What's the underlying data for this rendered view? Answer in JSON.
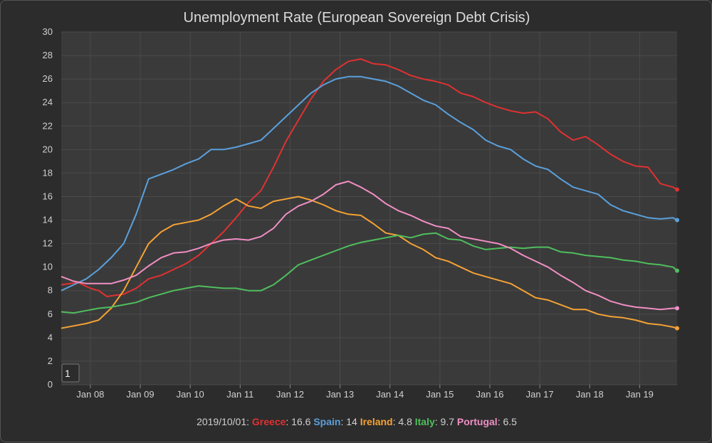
{
  "chart_data": {
    "type": "line",
    "title": "Unemployment Rate (European Sovereign Debt Crisis)",
    "x_tick_labels": [
      "Jan 08",
      "Jan 09",
      "Jan 10",
      "Jan 11",
      "Jan 12",
      "Jan 13",
      "Jan 14",
      "Jan 15",
      "Jan 16",
      "Jan 17",
      "Jan 18",
      "Jan 19"
    ],
    "y_ticks": [
      0,
      2,
      4,
      6,
      8,
      10,
      12,
      14,
      16,
      18,
      20,
      22,
      24,
      26,
      28,
      30
    ],
    "ylim": [
      0,
      30
    ],
    "xlim": [
      "2007-06",
      "2019-10"
    ],
    "grid": true,
    "roller_value": "1",
    "series": [
      {
        "name": "Greece",
        "color": "#e03131",
        "x": [
          "2007-06",
          "2007-10",
          "2008-01",
          "2008-03",
          "2008-05",
          "2008-07",
          "2008-09",
          "2008-12",
          "2009-03",
          "2009-06",
          "2009-09",
          "2009-12",
          "2010-03",
          "2010-06",
          "2010-09",
          "2010-12",
          "2011-03",
          "2011-06",
          "2011-09",
          "2011-12",
          "2012-03",
          "2012-06",
          "2012-09",
          "2012-12",
          "2013-03",
          "2013-06",
          "2013-09",
          "2013-12",
          "2014-03",
          "2014-06",
          "2014-09",
          "2014-12",
          "2015-03",
          "2015-06",
          "2015-09",
          "2015-12",
          "2016-03",
          "2016-06",
          "2016-09",
          "2016-12",
          "2017-03",
          "2017-06",
          "2017-09",
          "2017-12",
          "2018-03",
          "2018-06",
          "2018-09",
          "2018-12",
          "2019-03",
          "2019-06",
          "2019-09",
          "2019-10"
        ],
        "y": [
          8.5,
          8.7,
          8.2,
          8.0,
          7.5,
          7.6,
          7.7,
          8.2,
          9.0,
          9.3,
          9.8,
          10.3,
          11.0,
          12.0,
          13.0,
          14.2,
          15.5,
          16.5,
          18.5,
          20.7,
          22.5,
          24.3,
          25.8,
          26.8,
          27.5,
          27.7,
          27.3,
          27.2,
          26.8,
          26.3,
          26.0,
          25.8,
          25.5,
          24.8,
          24.5,
          24.0,
          23.6,
          23.3,
          23.1,
          23.2,
          22.6,
          21.5,
          20.8,
          21.1,
          20.4,
          19.6,
          19.0,
          18.6,
          18.5,
          17.1,
          16.8,
          16.6
        ]
      },
      {
        "name": "Spain",
        "color": "#5aa0dc",
        "x": [
          "2007-06",
          "2007-09",
          "2007-12",
          "2008-03",
          "2008-06",
          "2008-09",
          "2008-12",
          "2009-03",
          "2009-06",
          "2009-09",
          "2009-12",
          "2010-03",
          "2010-06",
          "2010-09",
          "2010-12",
          "2011-03",
          "2011-06",
          "2011-09",
          "2011-12",
          "2012-03",
          "2012-06",
          "2012-09",
          "2012-12",
          "2013-03",
          "2013-06",
          "2013-09",
          "2013-12",
          "2014-03",
          "2014-06",
          "2014-09",
          "2014-12",
          "2015-03",
          "2015-06",
          "2015-09",
          "2015-12",
          "2016-03",
          "2016-06",
          "2016-09",
          "2016-12",
          "2017-03",
          "2017-06",
          "2017-09",
          "2017-12",
          "2018-03",
          "2018-06",
          "2018-09",
          "2018-12",
          "2019-03",
          "2019-06",
          "2019-09",
          "2019-10"
        ],
        "y": [
          8.0,
          8.5,
          9.0,
          9.8,
          10.8,
          12.0,
          14.5,
          17.5,
          17.9,
          18.3,
          18.8,
          19.2,
          20.0,
          20.0,
          20.2,
          20.5,
          20.8,
          21.8,
          22.8,
          23.8,
          24.8,
          25.5,
          26.0,
          26.2,
          26.2,
          26.0,
          25.8,
          25.4,
          24.8,
          24.2,
          23.8,
          23.0,
          22.3,
          21.7,
          20.8,
          20.3,
          20.0,
          19.2,
          18.6,
          18.3,
          17.5,
          16.8,
          16.5,
          16.2,
          15.3,
          14.8,
          14.5,
          14.2,
          14.1,
          14.2,
          14.0
        ]
      },
      {
        "name": "Ireland",
        "color": "#f5a234",
        "x": [
          "2007-06",
          "2007-09",
          "2007-12",
          "2008-03",
          "2008-06",
          "2008-09",
          "2008-12",
          "2009-03",
          "2009-06",
          "2009-09",
          "2009-12",
          "2010-03",
          "2010-06",
          "2010-09",
          "2010-12",
          "2011-03",
          "2011-06",
          "2011-09",
          "2011-12",
          "2012-03",
          "2012-06",
          "2012-09",
          "2012-12",
          "2013-03",
          "2013-06",
          "2013-09",
          "2013-12",
          "2014-03",
          "2014-06",
          "2014-09",
          "2014-12",
          "2015-03",
          "2015-06",
          "2015-09",
          "2015-12",
          "2016-03",
          "2016-06",
          "2016-09",
          "2016-12",
          "2017-03",
          "2017-06",
          "2017-09",
          "2017-12",
          "2018-03",
          "2018-06",
          "2018-09",
          "2018-12",
          "2019-03",
          "2019-06",
          "2019-09",
          "2019-10"
        ],
        "y": [
          4.8,
          5.0,
          5.2,
          5.5,
          6.5,
          8.0,
          10.0,
          12.0,
          13.0,
          13.6,
          13.8,
          14.0,
          14.5,
          15.2,
          15.8,
          15.2,
          15.0,
          15.6,
          15.8,
          16.0,
          15.7,
          15.3,
          14.8,
          14.5,
          14.4,
          13.7,
          12.9,
          12.7,
          12.0,
          11.5,
          10.8,
          10.5,
          10.0,
          9.5,
          9.2,
          8.9,
          8.6,
          8.0,
          7.4,
          7.2,
          6.8,
          6.4,
          6.4,
          6.0,
          5.8,
          5.7,
          5.5,
          5.2,
          5.1,
          4.9,
          4.8
        ]
      },
      {
        "name": "Italy",
        "color": "#4fbf5e",
        "x": [
          "2007-06",
          "2007-09",
          "2007-12",
          "2008-03",
          "2008-06",
          "2008-09",
          "2008-12",
          "2009-03",
          "2009-06",
          "2009-09",
          "2009-12",
          "2010-03",
          "2010-06",
          "2010-09",
          "2010-12",
          "2011-03",
          "2011-06",
          "2011-09",
          "2011-12",
          "2012-03",
          "2012-06",
          "2012-09",
          "2012-12",
          "2013-03",
          "2013-06",
          "2013-09",
          "2013-12",
          "2014-03",
          "2014-06",
          "2014-09",
          "2014-12",
          "2015-03",
          "2015-06",
          "2015-09",
          "2015-12",
          "2016-03",
          "2016-06",
          "2016-09",
          "2016-12",
          "2017-03",
          "2017-06",
          "2017-09",
          "2017-12",
          "2018-03",
          "2018-06",
          "2018-09",
          "2018-12",
          "2019-03",
          "2019-06",
          "2019-09",
          "2019-10"
        ],
        "y": [
          6.2,
          6.1,
          6.3,
          6.5,
          6.6,
          6.8,
          7.0,
          7.4,
          7.7,
          8.0,
          8.2,
          8.4,
          8.3,
          8.2,
          8.2,
          8.0,
          8.0,
          8.5,
          9.3,
          10.2,
          10.6,
          11.0,
          11.4,
          11.8,
          12.1,
          12.3,
          12.5,
          12.7,
          12.5,
          12.8,
          12.9,
          12.4,
          12.3,
          11.8,
          11.5,
          11.6,
          11.7,
          11.6,
          11.7,
          11.7,
          11.3,
          11.2,
          11.0,
          10.9,
          10.8,
          10.6,
          10.5,
          10.3,
          10.2,
          10.0,
          9.7
        ]
      },
      {
        "name": "Portugal",
        "color": "#f08fc4",
        "x": [
          "2007-06",
          "2007-09",
          "2007-12",
          "2008-03",
          "2008-06",
          "2008-09",
          "2008-12",
          "2009-03",
          "2009-06",
          "2009-09",
          "2009-12",
          "2010-03",
          "2010-06",
          "2010-09",
          "2010-12",
          "2011-03",
          "2011-06",
          "2011-09",
          "2011-12",
          "2012-03",
          "2012-06",
          "2012-09",
          "2012-12",
          "2013-03",
          "2013-06",
          "2013-09",
          "2013-12",
          "2014-03",
          "2014-06",
          "2014-09",
          "2014-12",
          "2015-03",
          "2015-06",
          "2015-09",
          "2015-12",
          "2016-03",
          "2016-06",
          "2016-09",
          "2016-12",
          "2017-03",
          "2017-06",
          "2017-09",
          "2017-12",
          "2018-03",
          "2018-06",
          "2018-09",
          "2018-12",
          "2019-03",
          "2019-06",
          "2019-09",
          "2019-10"
        ],
        "y": [
          9.2,
          8.8,
          8.6,
          8.6,
          8.6,
          8.9,
          9.3,
          10.1,
          10.8,
          11.2,
          11.3,
          11.6,
          12.0,
          12.3,
          12.4,
          12.3,
          12.6,
          13.3,
          14.5,
          15.2,
          15.6,
          16.2,
          17.0,
          17.3,
          16.8,
          16.2,
          15.4,
          14.8,
          14.4,
          13.9,
          13.5,
          13.3,
          12.6,
          12.4,
          12.2,
          12.0,
          11.6,
          11.0,
          10.5,
          10.0,
          9.3,
          8.7,
          8.0,
          7.6,
          7.1,
          6.8,
          6.6,
          6.5,
          6.4,
          6.5,
          6.5
        ]
      }
    ]
  },
  "footer": {
    "date": "2019/10/01",
    "values": [
      {
        "name": "Greece",
        "value": "16.6"
      },
      {
        "name": "Spain",
        "value": "14"
      },
      {
        "name": "Ireland",
        "value": "4.8"
      },
      {
        "name": "Italy",
        "value": "9.7"
      },
      {
        "name": "Portugal",
        "value": "6.5"
      }
    ]
  }
}
